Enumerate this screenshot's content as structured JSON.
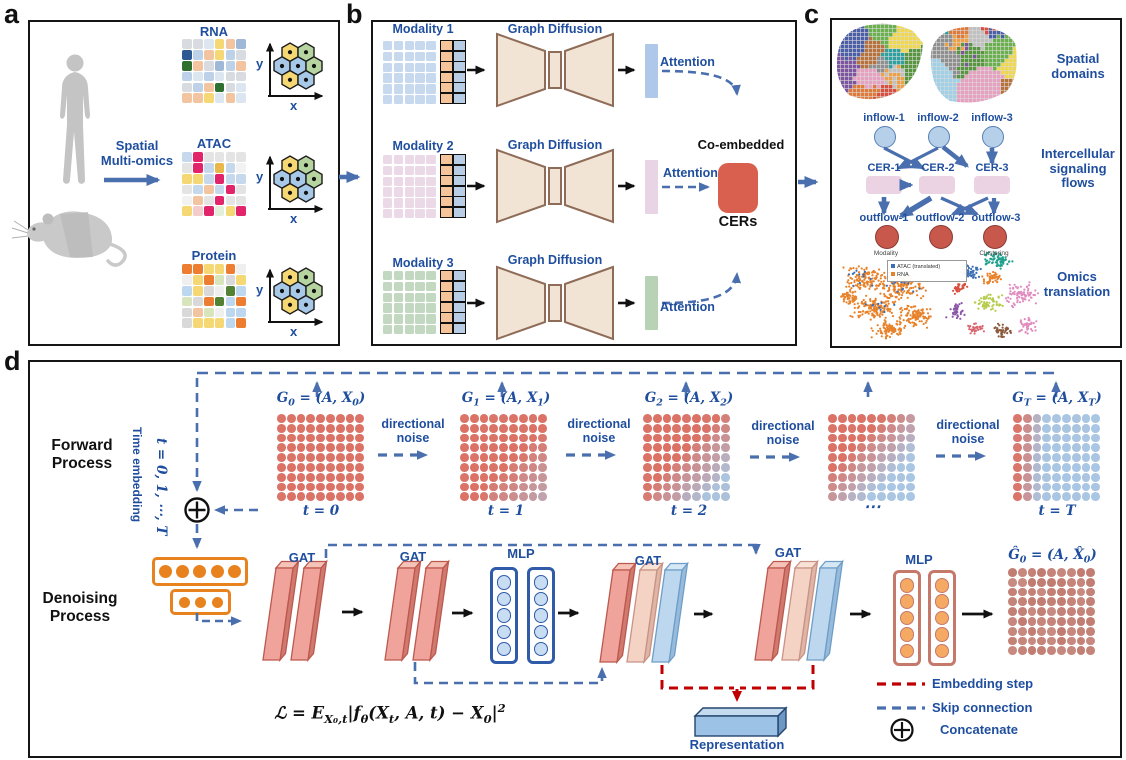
{
  "figure": {
    "panel_a": {
      "label": "a",
      "source_line1": "Spatial",
      "source_line2": "Multi-omics",
      "omics": [
        "RNA",
        "ATAC",
        "Protein"
      ],
      "axis_y": "y",
      "axis_x": "x"
    },
    "panel_b": {
      "label": "b",
      "modalities": [
        "Modality 1",
        "Modality 2",
        "Modality 3"
      ],
      "graph_diffusion": "Graph Diffusion",
      "attention": "Attention",
      "co_embedded": "Co-embedded",
      "cers": "CERs"
    },
    "panel_c": {
      "label": "c",
      "spatial_line1": "Spatial",
      "spatial_line2": "domains",
      "inflows": [
        "inflow-1",
        "inflow-2",
        "inflow-3"
      ],
      "cers": [
        "CER-1",
        "CER-2",
        "CER-3"
      ],
      "outflows": [
        "outflow-1",
        "outflow-2",
        "outflow-3"
      ],
      "signaling_line1": "Intercellular",
      "signaling_line2": "signaling",
      "signaling_line3": "flows",
      "scatter_captions": [
        "Modality",
        "Clustering"
      ],
      "umap_legend": [
        "ATAC (translated)",
        "RNA"
      ],
      "omics_line1": "Omics",
      "omics_line2": "translation"
    },
    "panel_d": {
      "label": "d",
      "forward_line1": "Forward",
      "forward_line2": "Process",
      "denoise_line1": "Denoising",
      "denoise_line2": "Process",
      "time_embedding": "Time embedding",
      "time_range": "t = 0, 1, ⋯, T",
      "stages": [
        {
          "graph": "G_{0} = (A, X_{0})",
          "time": "t = 0"
        },
        {
          "graph": "G_{1} = (A, X_{1})",
          "time": "t = 1"
        },
        {
          "graph": "G_{2} = (A, X_{2})",
          "time": "t = 2"
        },
        {
          "time": "⋯"
        },
        {
          "graph": "G_{T} = (A, X_{T})",
          "time": "t = T"
        }
      ],
      "noise_line1": "directional",
      "noise_line2": "noise",
      "gat": "GAT",
      "mlp": "MLP",
      "output_graph": "Ĝ_{0} = (A, X̂_{0})",
      "loss": "ℒ = E_{X₀,t}|f_{θ}(X_{t}, A, t) − X_{0}|^{2}",
      "representation": "Representation",
      "legend": {
        "embedding_step": "Embedding step",
        "skip_connection": "Skip connection",
        "concatenate": "Concatenate"
      }
    },
    "colors": {
      "accent_blue": "#1F4E9E",
      "dash_blue": "#4a6fae",
      "dash_red": "#C00000",
      "spot_red": "#DC7265",
      "spot_blue": "#A9C7E4",
      "spot_out": "#C17B70",
      "cer_red": "#D9604F",
      "orange": "#E8821E"
    }
  }
}
